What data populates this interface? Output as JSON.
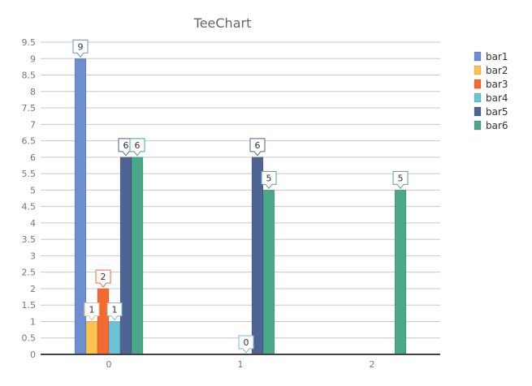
{
  "chart_data": {
    "type": "bar",
    "title": "TeeChart",
    "xlabel": "",
    "ylabel": "",
    "categories": [
      "0",
      "1",
      "2"
    ],
    "ylim": [
      0,
      9.5
    ],
    "y_ticks": [
      "0",
      "0.5",
      "1",
      "1.5",
      "2",
      "2.5",
      "3",
      "3.5",
      "4",
      "4.5",
      "5",
      "5.5",
      "6",
      "6.5",
      "7",
      "7.5",
      "8",
      "8.5",
      "9",
      "9.5"
    ],
    "grid": true,
    "legend_position": "right",
    "series": [
      {
        "name": "bar1",
        "color": "#6d8fd0",
        "values": [
          9,
          null,
          null
        ]
      },
      {
        "name": "bar2",
        "color": "#ffc34d",
        "values": [
          1,
          null,
          null
        ]
      },
      {
        "name": "bar3",
        "color": "#f26b35",
        "values": [
          2,
          null,
          null
        ]
      },
      {
        "name": "bar4",
        "color": "#6cc3d6",
        "values": [
          1,
          0,
          null
        ]
      },
      {
        "name": "bar5",
        "color": "#4e6594",
        "values": [
          6,
          6,
          null
        ]
      },
      {
        "name": "bar6",
        "color": "#4aa889",
        "values": [
          6,
          5,
          5
        ]
      }
    ]
  }
}
